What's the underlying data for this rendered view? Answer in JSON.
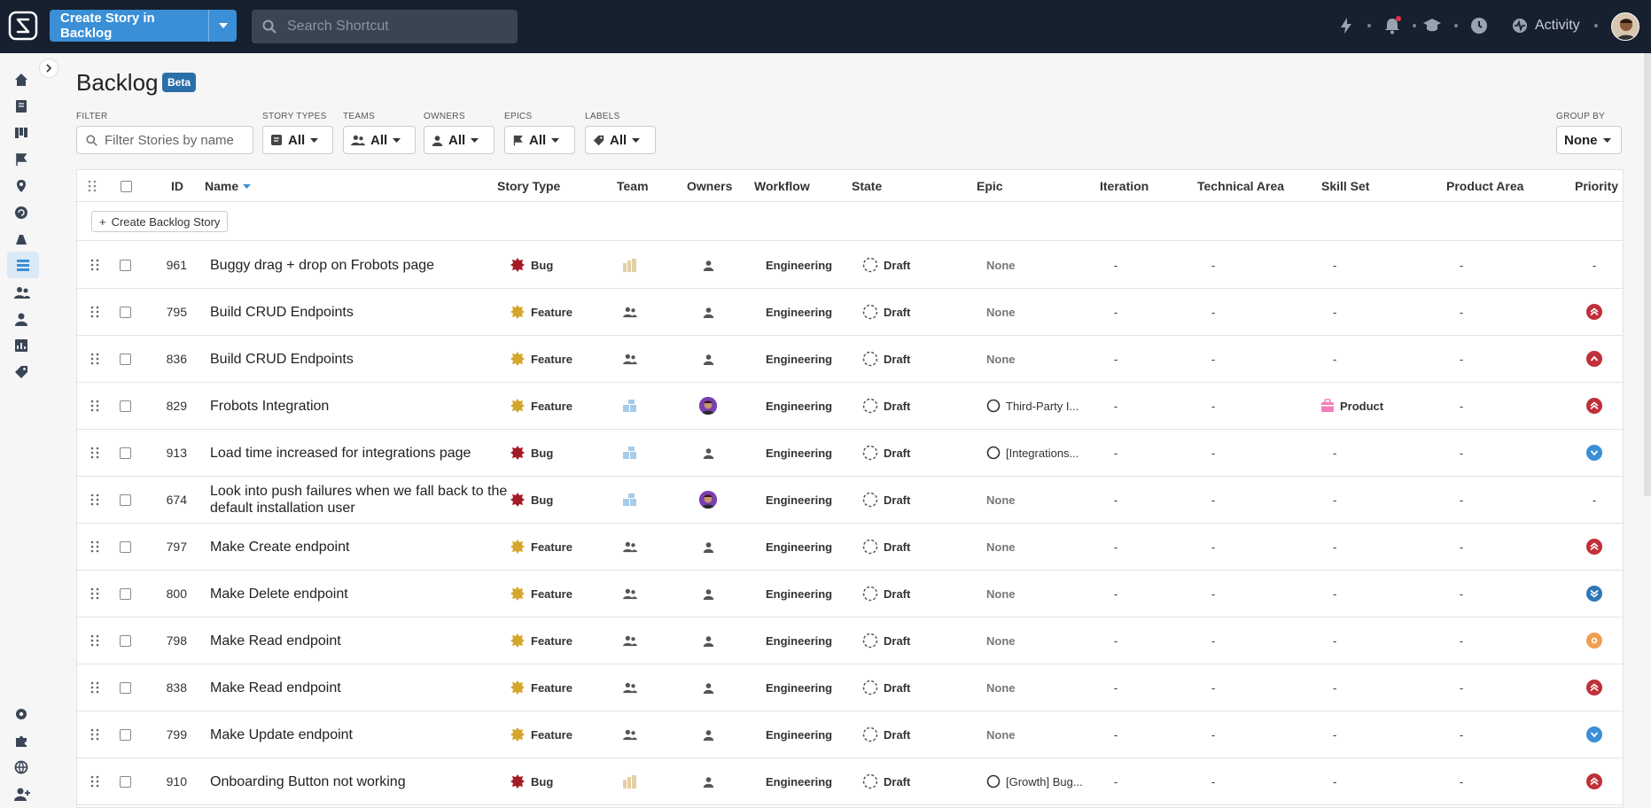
{
  "topbar": {
    "create_button_label": "Create Story in Backlog",
    "search_placeholder": "Search Shortcut",
    "activity_label": "Activity",
    "notification_dot_color": "#e0334a"
  },
  "page": {
    "title": "Backlog",
    "badge": "Beta"
  },
  "filters": {
    "filter_label": "FILTER",
    "filter_placeholder": "Filter Stories by name",
    "story_types": {
      "label": "STORY TYPES",
      "value": "All"
    },
    "teams": {
      "label": "TEAMS",
      "value": "All"
    },
    "owners": {
      "label": "OWNERS",
      "value": "All"
    },
    "epics": {
      "label": "EPICS",
      "value": "All"
    },
    "labels": {
      "label": "LABELS",
      "value": "All"
    },
    "group_by": {
      "label": "GROUP BY",
      "value": "None"
    }
  },
  "table": {
    "columns": {
      "id": "ID",
      "name": "Name",
      "story_type": "Story Type",
      "team": "Team",
      "owners": "Owners",
      "workflow": "Workflow",
      "state": "State",
      "epic": "Epic",
      "iteration": "Iteration",
      "technical_area": "Technical Area",
      "skill_set": "Skill Set",
      "product_area": "Product Area",
      "priority": "Priority"
    },
    "create_label": "Create Backlog Story",
    "rows": [
      {
        "id": "961",
        "name": "Buggy drag + drop on Frobots page",
        "type": "Bug",
        "team": "building",
        "owner": "person",
        "workflow": "Engineering",
        "state": "Draft",
        "epic": "None",
        "iteration": "-",
        "tech": "-",
        "skill": "-",
        "product": "-",
        "priority": "none"
      },
      {
        "id": "795",
        "name": "Build CRUD Endpoints",
        "type": "Feature",
        "team": "people",
        "owner": "person",
        "workflow": "Engineering",
        "state": "Draft",
        "epic": "None",
        "iteration": "-",
        "tech": "-",
        "skill": "-",
        "product": "-",
        "priority": "highest"
      },
      {
        "id": "836",
        "name": "Build CRUD Endpoints",
        "type": "Feature",
        "team": "people",
        "owner": "person",
        "workflow": "Engineering",
        "state": "Draft",
        "epic": "None",
        "iteration": "-",
        "tech": "-",
        "skill": "-",
        "product": "-",
        "priority": "high"
      },
      {
        "id": "829",
        "name": "Frobots Integration",
        "type": "Feature",
        "team": "blocks",
        "owner": "photo",
        "workflow": "Engineering",
        "state": "Draft",
        "epic": "Third-Party I...",
        "iteration": "-",
        "tech": "-",
        "skill": "Product",
        "product": "-",
        "priority": "highest"
      },
      {
        "id": "913",
        "name": "Load time increased for integrations page",
        "type": "Bug",
        "team": "blocks",
        "owner": "person",
        "workflow": "Engineering",
        "state": "Draft",
        "epic": "[Integrations...",
        "iteration": "-",
        "tech": "-",
        "skill": "-",
        "product": "-",
        "priority": "low"
      },
      {
        "id": "674",
        "name": "Look into push failures when we fall back to the default installation user",
        "type": "Bug",
        "team": "blocks",
        "owner": "photo",
        "workflow": "Engineering",
        "state": "Draft",
        "epic": "None",
        "iteration": "-",
        "tech": "-",
        "skill": "-",
        "product": "-",
        "priority": "none"
      },
      {
        "id": "797",
        "name": "Make Create endpoint",
        "type": "Feature",
        "team": "people",
        "owner": "person",
        "workflow": "Engineering",
        "state": "Draft",
        "epic": "None",
        "iteration": "-",
        "tech": "-",
        "skill": "-",
        "product": "-",
        "priority": "highest"
      },
      {
        "id": "800",
        "name": "Make Delete endpoint",
        "type": "Feature",
        "team": "people",
        "owner": "person",
        "workflow": "Engineering",
        "state": "Draft",
        "epic": "None",
        "iteration": "-",
        "tech": "-",
        "skill": "-",
        "product": "-",
        "priority": "lowest"
      },
      {
        "id": "798",
        "name": "Make Read endpoint",
        "type": "Feature",
        "team": "people",
        "owner": "person",
        "workflow": "Engineering",
        "state": "Draft",
        "epic": "None",
        "iteration": "-",
        "tech": "-",
        "skill": "-",
        "product": "-",
        "priority": "medium"
      },
      {
        "id": "838",
        "name": "Make Read endpoint",
        "type": "Feature",
        "team": "people",
        "owner": "person",
        "workflow": "Engineering",
        "state": "Draft",
        "epic": "None",
        "iteration": "-",
        "tech": "-",
        "skill": "-",
        "product": "-",
        "priority": "highest"
      },
      {
        "id": "799",
        "name": "Make Update endpoint",
        "type": "Feature",
        "team": "people",
        "owner": "person",
        "workflow": "Engineering",
        "state": "Draft",
        "epic": "None",
        "iteration": "-",
        "tech": "-",
        "skill": "-",
        "product": "-",
        "priority": "low"
      },
      {
        "id": "910",
        "name": "Onboarding Button not working",
        "type": "Bug",
        "team": "building",
        "owner": "person",
        "workflow": "Engineering",
        "state": "Draft",
        "epic": "[Growth] Bug...",
        "iteration": "-",
        "tech": "-",
        "skill": "-",
        "product": "-",
        "priority": "highest"
      }
    ]
  },
  "colors": {
    "bug": "#a31b25",
    "feature": "#d4a72c",
    "priority_high": "#c0303a",
    "priority_low": "#3a8fd6",
    "priority_medium": "#f0a050",
    "accent": "#3a8fd6"
  }
}
